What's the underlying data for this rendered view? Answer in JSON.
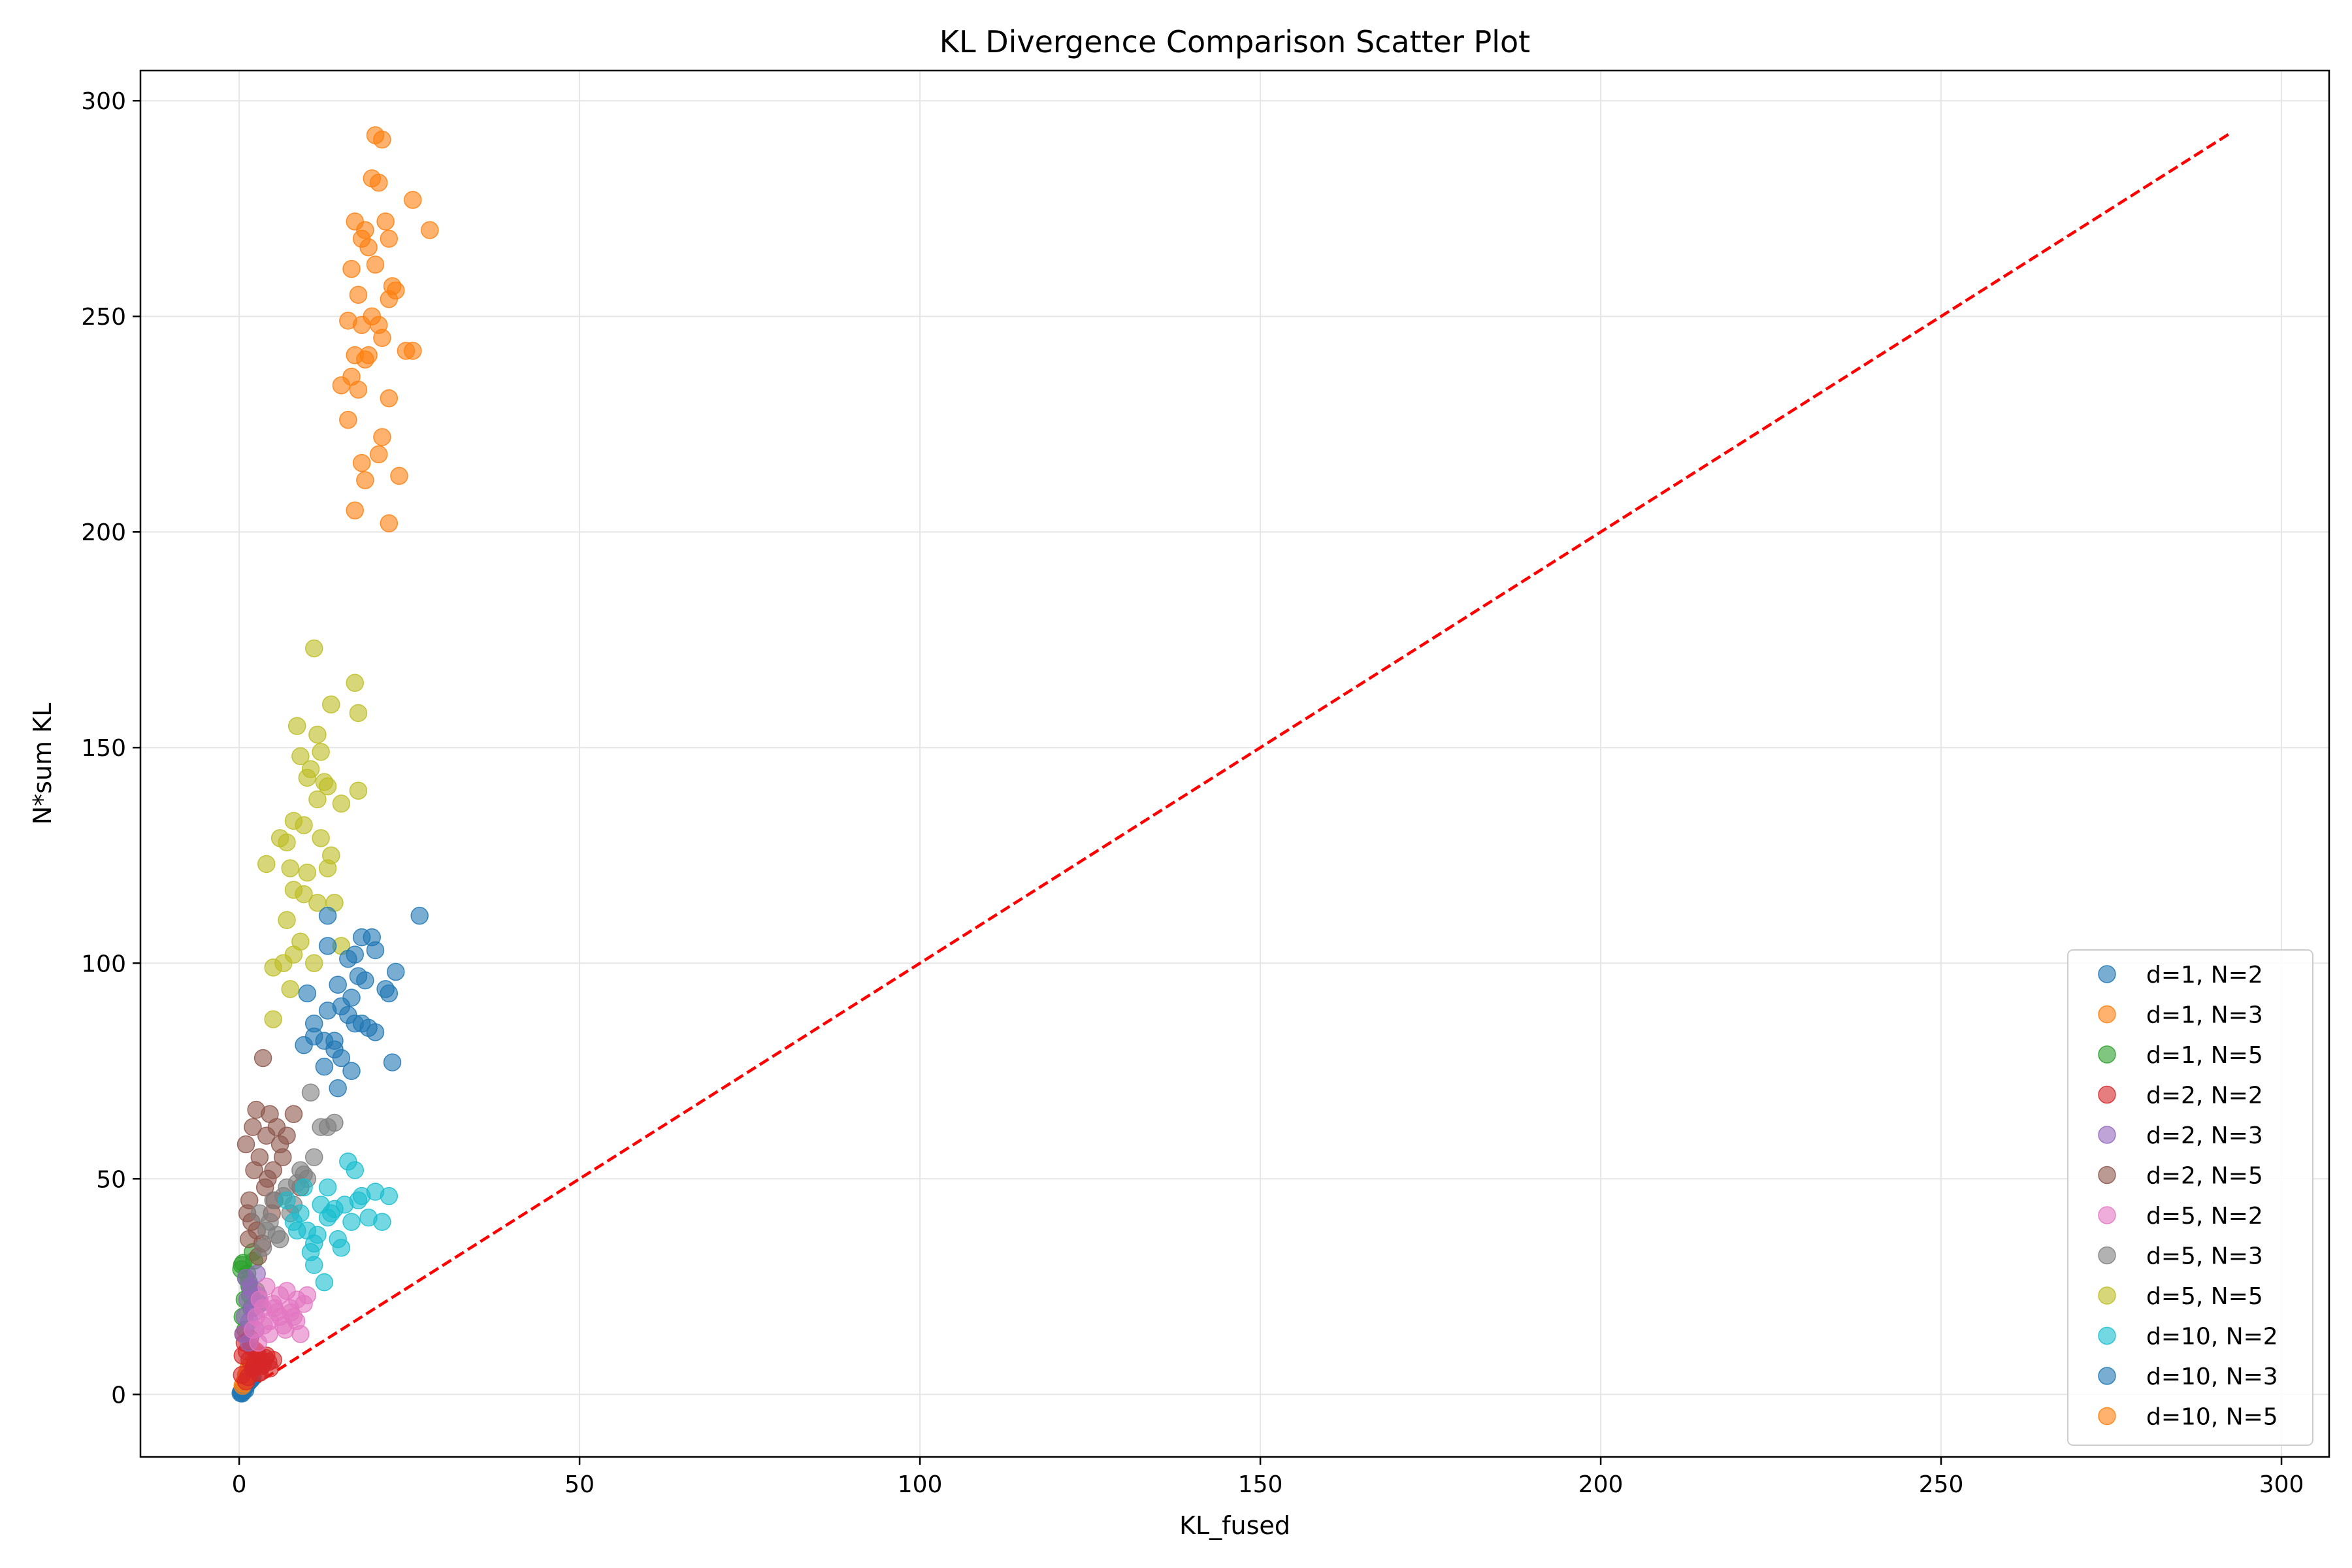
{
  "chart_data": {
    "type": "scatter",
    "title": "KL Divergence Comparison Scatter Plot",
    "xlabel": "KL_fused",
    "ylabel": "N*sum KL",
    "xlim": [
      -14.5,
      307
    ],
    "ylim": [
      -14.5,
      307
    ],
    "xticks": [
      0,
      50,
      100,
      150,
      200,
      250,
      300
    ],
    "yticks": [
      0,
      50,
      100,
      150,
      200,
      250,
      300
    ],
    "grid": true,
    "legend_position": "bottom-right",
    "reference_line": {
      "style": "dashed",
      "color": "#ff0000",
      "x": [
        0,
        292.5
      ],
      "y": [
        0,
        292.5
      ]
    },
    "series": [
      {
        "name": "d=1, N=2",
        "color": "#1f77b4",
        "x": [
          0.2,
          0.4,
          0.6,
          0.5,
          0.8,
          1.0,
          1.2,
          0.9,
          1.5,
          0.3,
          0.7,
          1.1,
          1.3,
          1.8,
          0.6,
          0.4,
          1.6,
          2.0
        ],
        "y": [
          0.3,
          0.5,
          0.8,
          1.2,
          1.5,
          2.0,
          2.5,
          1.0,
          3.0,
          0.6,
          1.8,
          2.2,
          2.8,
          3.5,
          0.9,
          0.2,
          3.2,
          4.0
        ]
      },
      {
        "name": "d=1, N=3",
        "color": "#ff7f0e",
        "x": [
          0.5,
          1.0,
          1.5,
          2.0,
          0.8,
          1.2,
          1.8,
          2.5,
          0.6,
          1.4,
          2.2,
          1.0,
          1.7,
          2.8
        ],
        "y": [
          2.0,
          4.0,
          5.0,
          6.0,
          3.0,
          5.5,
          7.0,
          8.0,
          2.5,
          6.5,
          7.5,
          4.5,
          6.0,
          9.0
        ]
      },
      {
        "name": "d=1, N=5",
        "color": "#2ca02c",
        "x": [
          0.3,
          0.6,
          1.0,
          1.5,
          2.0,
          0.8,
          1.2,
          1.8,
          2.5,
          0.5,
          1.4,
          2.2,
          0.9,
          1.6,
          3.0,
          0.4
        ],
        "y": [
          29.0,
          30.5,
          27.0,
          25.0,
          33.0,
          22.0,
          28.0,
          20.0,
          24.0,
          18.0,
          26.0,
          31.0,
          15.0,
          23.0,
          21.0,
          30.0
        ]
      },
      {
        "name": "d=2, N=2",
        "color": "#d62728",
        "x": [
          0.5,
          1.0,
          1.5,
          2.0,
          2.5,
          3.0,
          3.5,
          4.0,
          4.5,
          5.0,
          0.8,
          1.3,
          1.8,
          2.3,
          2.8,
          3.3,
          3.8,
          4.3,
          0.6,
          1.1,
          1.6,
          2.1,
          2.6,
          0.4
        ],
        "y": [
          9.0,
          3.0,
          8.0,
          6.0,
          10.0,
          5.0,
          7.0,
          9.0,
          6.0,
          8.0,
          12.0,
          4.0,
          11.0,
          7.0,
          5.0,
          6.5,
          8.5,
          7.5,
          14.0,
          10.0,
          13.0,
          6.0,
          9.5,
          4.5
        ]
      },
      {
        "name": "d=2, N=3",
        "color": "#9467bd",
        "x": [
          0.8,
          1.2,
          1.6,
          2.0,
          2.4,
          1.0,
          1.4,
          1.8,
          2.2,
          2.6,
          3.0,
          0.6,
          1.5,
          2.8
        ],
        "y": [
          18.0,
          22.0,
          25.0,
          20.0,
          15.0,
          27.0,
          12.0,
          24.0,
          19.0,
          28.0,
          21.0,
          14.0,
          17.0,
          23.0
        ]
      },
      {
        "name": "d=2, N=5",
        "color": "#8c564b",
        "x": [
          1.0,
          1.5,
          2.0,
          2.5,
          3.0,
          3.5,
          4.0,
          4.5,
          5.0,
          5.5,
          6.0,
          7.0,
          8.0,
          9.0,
          1.2,
          1.8,
          2.6,
          3.4,
          4.2,
          5.2,
          6.4,
          2.2,
          3.8,
          4.8,
          1.4,
          2.8
        ],
        "y": [
          58.0,
          45.0,
          62.0,
          66.0,
          55.0,
          78.0,
          60.0,
          65.0,
          52.0,
          62.0,
          58.0,
          60.0,
          65.0,
          48.0,
          42.0,
          40.0,
          38.0,
          35.0,
          50.0,
          45.0,
          55.0,
          52.0,
          48.0,
          42.0,
          36.0,
          32.0
        ]
      },
      {
        "name": "d=5, N=2",
        "color": "#e377c2",
        "x": [
          2.0,
          2.5,
          3.0,
          3.5,
          4.0,
          4.5,
          5.0,
          5.5,
          6.0,
          6.5,
          7.0,
          7.5,
          8.0,
          8.5,
          9.0,
          9.5,
          10.0,
          2.8,
          3.6,
          4.4,
          5.2,
          6.0,
          6.8,
          7.6,
          8.4
        ],
        "y": [
          15.0,
          18.0,
          22.0,
          20.0,
          25.0,
          17.0,
          21.0,
          19.0,
          23.0,
          16.0,
          24.0,
          20.0,
          18.0,
          22.0,
          14.0,
          21.0,
          23.0,
          12.0,
          16.0,
          14.0,
          20.0,
          18.0,
          15.0,
          19.0,
          17.0
        ]
      },
      {
        "name": "d=5, N=3",
        "color": "#7f7f7f",
        "x": [
          3.0,
          4.0,
          5.0,
          6.0,
          7.0,
          8.0,
          9.0,
          10.0,
          11.0,
          12.0,
          13.0,
          14.0,
          3.5,
          4.5,
          5.5,
          6.5,
          7.5,
          8.5,
          9.5,
          10.5
        ],
        "y": [
          42.0,
          38.0,
          45.0,
          36.0,
          48.0,
          44.0,
          52.0,
          50.0,
          55.0,
          62.0,
          62.0,
          63.0,
          34.0,
          40.0,
          37.0,
          46.0,
          42.0,
          49.0,
          51.0,
          70.0
        ]
      },
      {
        "name": "d=5, N=5",
        "color": "#bcbd22",
        "x": [
          11.0,
          17.0,
          17.5,
          13.5,
          8.5,
          11.5,
          10.5,
          9.0,
          12.0,
          13.0,
          17.5,
          15.0,
          10.0,
          11.5,
          12.5,
          8.0,
          9.5,
          6.0,
          7.0,
          12.0,
          13.5,
          4.0,
          7.5,
          10.0,
          13.0,
          9.5,
          11.5,
          8.0,
          14.0,
          7.0,
          9.0,
          5.0,
          7.5,
          6.5,
          8.0,
          11.0,
          15.0,
          5.0
        ],
        "y": [
          173.0,
          165.0,
          158.0,
          160.0,
          155.0,
          153.0,
          145.0,
          148.0,
          149.0,
          141.0,
          140.0,
          137.0,
          143.0,
          138.0,
          142.0,
          133.0,
          132.0,
          129.0,
          128.0,
          129.0,
          125.0,
          123.0,
          122.0,
          121.0,
          122.0,
          116.0,
          114.0,
          117.0,
          114.0,
          110.0,
          105.0,
          99.0,
          94.0,
          100.0,
          102.0,
          100.0,
          104.0,
          87.0
        ]
      },
      {
        "name": "d=10, N=2",
        "color": "#17becf",
        "x": [
          7.0,
          8.0,
          9.0,
          10.0,
          11.0,
          12.0,
          13.0,
          14.0,
          15.0,
          16.0,
          17.0,
          18.0,
          19.0,
          20.0,
          21.0,
          22.0,
          8.5,
          9.5,
          10.5,
          11.5,
          12.5,
          13.5,
          14.5,
          15.5,
          16.5,
          17.5,
          11.0,
          13.0
        ],
        "y": [
          45.0,
          40.0,
          42.0,
          38.0,
          35.0,
          44.0,
          41.0,
          43.0,
          34.0,
          54.0,
          52.0,
          46.0,
          41.0,
          47.0,
          40.0,
          46.0,
          38.0,
          48.0,
          33.0,
          37.0,
          26.0,
          42.0,
          36.0,
          44.0,
          40.0,
          45.0,
          30.0,
          48.0
        ]
      },
      {
        "name": "d=10, N=3",
        "color": "#1f77b4",
        "x": [
          26.5,
          13.0,
          18.0,
          19.5,
          17.0,
          13.0,
          16.0,
          20.0,
          23.0,
          17.5,
          10.0,
          14.5,
          16.5,
          18.5,
          21.5,
          22.0,
          13.0,
          15.0,
          16.0,
          17.0,
          18.0,
          19.0,
          20.0,
          14.0,
          11.0,
          9.5,
          12.5,
          14.0,
          15.0,
          16.5,
          22.5,
          11.0,
          12.5,
          14.5
        ],
        "y": [
          111.0,
          111.0,
          106.0,
          106.0,
          102.0,
          104.0,
          101.0,
          103.0,
          98.0,
          97.0,
          93.0,
          95.0,
          92.0,
          96.0,
          94.0,
          93.0,
          89.0,
          90.0,
          88.0,
          86.0,
          86.0,
          85.0,
          84.0,
          82.0,
          86.0,
          81.0,
          82.0,
          80.0,
          78.0,
          75.0,
          77.0,
          83.0,
          76.0,
          71.0
        ]
      },
      {
        "name": "d=10, N=5",
        "color": "#ff7f0e",
        "x": [
          20.0,
          21.0,
          19.5,
          20.5,
          17.0,
          18.5,
          21.5,
          25.5,
          28.0,
          19.0,
          22.0,
          18.0,
          20.0,
          16.5,
          22.5,
          23.0,
          17.5,
          19.5,
          16.0,
          18.0,
          20.5,
          22.0,
          24.5,
          17.0,
          19.0,
          18.5,
          21.0,
          25.5,
          17.5,
          22.0,
          15.0,
          16.5,
          21.0,
          18.0,
          20.5,
          23.5,
          18.5,
          17.0,
          22.0,
          16.0
        ],
        "y": [
          292.0,
          291.0,
          282.0,
          281.0,
          272.0,
          270.0,
          272.0,
          277.0,
          270.0,
          266.0,
          268.0,
          268.0,
          262.0,
          261.0,
          257.0,
          256.0,
          255.0,
          250.0,
          249.0,
          248.0,
          248.0,
          254.0,
          242.0,
          241.0,
          241.0,
          240.0,
          245.0,
          242.0,
          233.0,
          231.0,
          234.0,
          236.0,
          222.0,
          216.0,
          218.0,
          213.0,
          212.0,
          205.0,
          202.0,
          226.0
        ]
      }
    ]
  }
}
